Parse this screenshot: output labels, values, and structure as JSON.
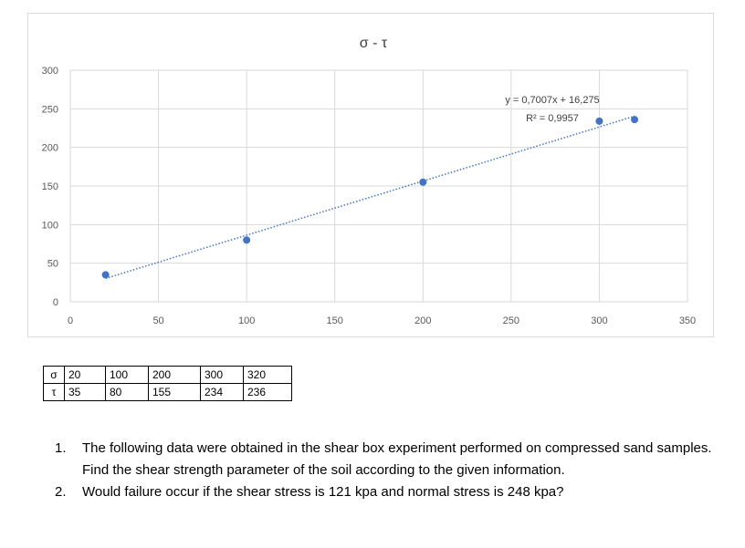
{
  "chart_data": {
    "type": "scatter",
    "title": "σ - τ",
    "x": [
      20,
      100,
      200,
      300,
      320
    ],
    "y": [
      35,
      80,
      155,
      234,
      236
    ],
    "xlim": [
      0,
      350
    ],
    "ylim": [
      0,
      300
    ],
    "x_ticks": [
      "0",
      "50",
      "100",
      "150",
      "200",
      "250",
      "300",
      "350"
    ],
    "y_ticks": [
      "0",
      "50",
      "100",
      "150",
      "200",
      "250",
      "300"
    ],
    "trendline": {
      "slope": 0.7007,
      "intercept": 16.275,
      "style": "dotted"
    },
    "equation": "y = 0,7007x + 16,275",
    "r_squared": "R² = 0,9957",
    "grid": true,
    "marker_color": "#4472c4",
    "trend_color": "#4472c4"
  },
  "table": {
    "rows": [
      {
        "label": "σ",
        "values": [
          "20",
          "100",
          "200",
          "300",
          "320"
        ]
      },
      {
        "label": "τ",
        "values": [
          "35",
          "80",
          "155",
          "234",
          "236"
        ]
      }
    ]
  },
  "questions": [
    {
      "num": "1.",
      "text": "The following data were obtained in the shear box experiment performed on compressed sand samples. Find the shear strength parameter of the soil according to the given information."
    },
    {
      "num": "2.",
      "text": "Would failure occur if the shear stress is 121 kpa and normal stress is 248 kpa?"
    }
  ]
}
